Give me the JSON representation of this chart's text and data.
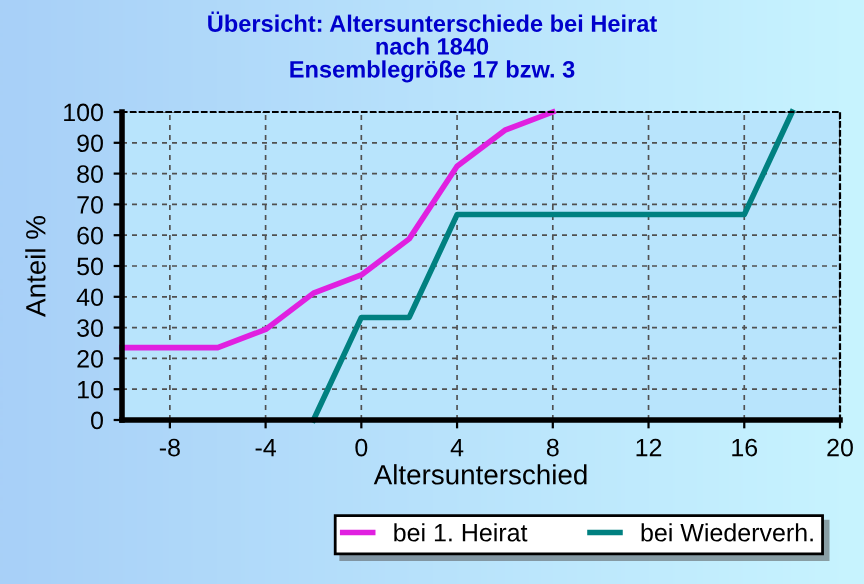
{
  "chart_data": {
    "type": "line",
    "title": "Übersicht: Altersunterschiede bei Heirat\nnach 1840\nEnsemblegröße 17 bzw. 3",
    "xlabel": "Altersunterschied",
    "ylabel": "Anteil %",
    "series": [
      {
        "name": "bei 1. Heirat",
        "color": "#e020e0",
        "x": [
          -10,
          -6,
          -4,
          -2,
          0,
          2,
          4,
          6,
          8
        ],
        "values": [
          23.5,
          23.5,
          29.4,
          41.2,
          47.1,
          58.8,
          82.4,
          94.1,
          100
        ]
      },
      {
        "name": "bei Wiederverh.",
        "color": "#008080",
        "x": [
          -2,
          0,
          2,
          4,
          16,
          18
        ],
        "values": [
          0,
          33.3,
          33.3,
          66.7,
          66.7,
          100
        ]
      }
    ],
    "xlim": [
      -10,
      20
    ],
    "xticks": [
      -8,
      -4,
      0,
      4,
      8,
      12,
      16,
      20
    ],
    "ylim": [
      0,
      100
    ],
    "yticks": [
      0,
      10,
      20,
      30,
      40,
      50,
      60,
      70,
      80,
      90,
      100
    ],
    "grid": true,
    "legend": "bottom",
    "marker": "none",
    "line_style": "solid"
  }
}
